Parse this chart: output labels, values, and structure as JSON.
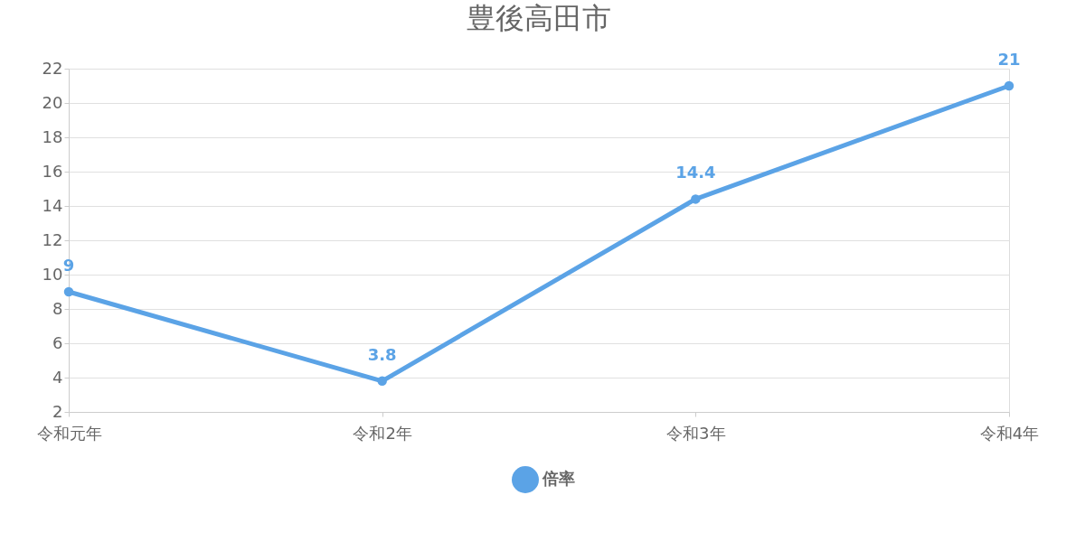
{
  "chart_data": {
    "type": "line",
    "title": "豊後高田市",
    "categories": [
      "令和元年",
      "令和2年",
      "令和3年",
      "令和4年"
    ],
    "series": [
      {
        "name": "倍率",
        "color": "#5ba3e6",
        "values": [
          9,
          3.8,
          14.4,
          21
        ]
      }
    ],
    "ylim": [
      2,
      22
    ],
    "yticks": [
      2,
      4,
      6,
      8,
      10,
      12,
      14,
      16,
      18,
      20,
      22
    ],
    "grid": "y",
    "legend": "bottom",
    "marker": "circle",
    "line_style": "solid",
    "data_labels": true
  }
}
